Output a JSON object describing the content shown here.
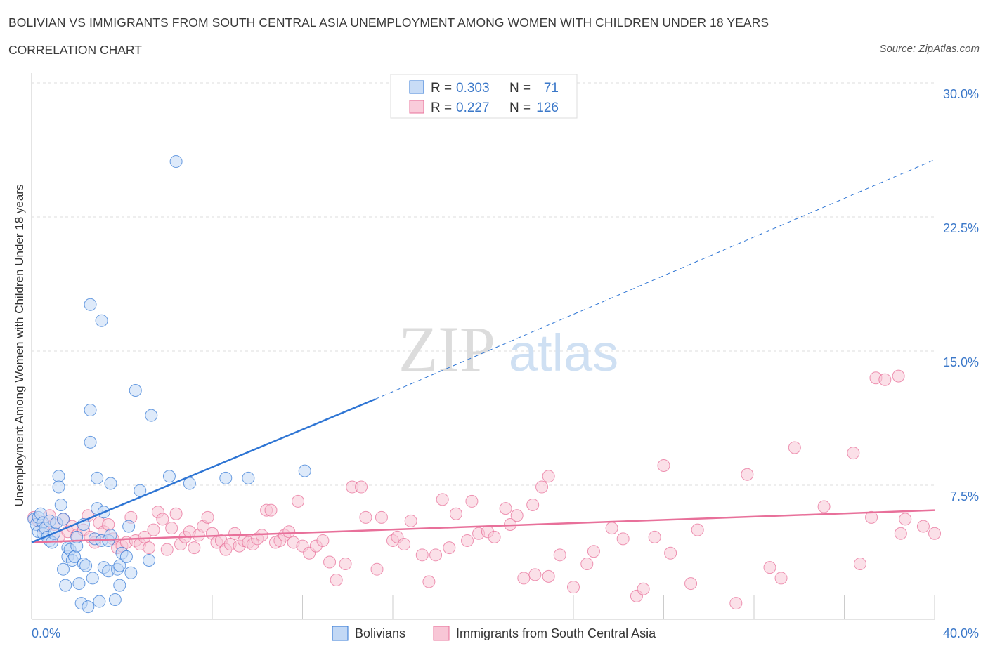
{
  "header": {
    "title": "BOLIVIAN VS IMMIGRANTS FROM SOUTH CENTRAL ASIA UNEMPLOYMENT AMONG WOMEN WITH CHILDREN UNDER 18 YEARS",
    "subtitle": "CORRELATION CHART",
    "source": "Source: ZipAtlas.com"
  },
  "watermark": {
    "part1": "ZIP",
    "part2": "atlas"
  },
  "colors": {
    "blue": "#2e75d4",
    "blue_fill": "#c2d8f5",
    "pink": "#e8709a",
    "pink_fill": "#f8c6d6",
    "tick_label": "#3b78c9"
  },
  "legend_stats": [
    {
      "r_label": "R =",
      "r_value": "0.303",
      "n_label": "N =",
      "n_value": "71"
    },
    {
      "r_label": "R =",
      "r_value": "0.227",
      "n_label": "N =",
      "n_value": "126"
    }
  ],
  "chart_data": {
    "type": "scatter",
    "ylabel": "Unemployment Among Women with Children Under 18 years",
    "xlabel": "",
    "xlim": [
      0,
      40
    ],
    "ylim": [
      0,
      30
    ],
    "x_tick_labels": [
      "0.0%",
      "40.0%"
    ],
    "y_ticks": [
      7.5,
      15.0,
      22.5,
      30.0
    ],
    "y_tick_labels": [
      "7.5%",
      "15.0%",
      "22.5%",
      "30.0%"
    ],
    "grid": "horizontal dashed",
    "legend_position": "bottom",
    "series": [
      {
        "name": "Bolivians",
        "r": 0.303,
        "n": 71,
        "trend_solid": [
          [
            0,
            4.3
          ],
          [
            15.2,
            12.3
          ]
        ],
        "trend_dashed": [
          [
            15.2,
            12.3
          ],
          [
            40,
            25.7
          ]
        ],
        "points": [
          [
            0.1,
            5.6
          ],
          [
            0.2,
            5.3
          ],
          [
            0.3,
            4.9
          ],
          [
            0.3,
            5.7
          ],
          [
            0.4,
            5.9
          ],
          [
            0.5,
            5.4
          ],
          [
            0.5,
            4.8
          ],
          [
            0.6,
            5.1
          ],
          [
            0.7,
            4.6
          ],
          [
            0.8,
            4.4
          ],
          [
            0.8,
            5.5
          ],
          [
            0.9,
            4.3
          ],
          [
            1.0,
            4.8
          ],
          [
            1.1,
            5.4
          ],
          [
            1.2,
            8.0
          ],
          [
            1.2,
            7.4
          ],
          [
            1.3,
            6.4
          ],
          [
            1.4,
            5.6
          ],
          [
            1.4,
            2.8
          ],
          [
            1.5,
            1.9
          ],
          [
            1.6,
            3.5
          ],
          [
            1.6,
            4.0
          ],
          [
            1.7,
            3.9
          ],
          [
            1.8,
            3.3
          ],
          [
            1.9,
            3.5
          ],
          [
            2.0,
            4.1
          ],
          [
            2.0,
            4.6
          ],
          [
            2.1,
            2.0
          ],
          [
            2.2,
            0.9
          ],
          [
            2.3,
            3.1
          ],
          [
            2.4,
            3.0
          ],
          [
            2.5,
            0.7
          ],
          [
            2.3,
            5.3
          ],
          [
            2.6,
            9.9
          ],
          [
            2.6,
            11.7
          ],
          [
            2.6,
            17.6
          ],
          [
            2.7,
            2.3
          ],
          [
            2.8,
            4.5
          ],
          [
            2.9,
            7.9
          ],
          [
            2.9,
            6.2
          ],
          [
            3.0,
            1.0
          ],
          [
            3.1,
            4.4
          ],
          [
            3.2,
            6.0
          ],
          [
            3.1,
            16.7
          ],
          [
            3.2,
            2.9
          ],
          [
            3.4,
            2.7
          ],
          [
            3.4,
            4.4
          ],
          [
            3.5,
            4.7
          ],
          [
            3.5,
            7.6
          ],
          [
            3.7,
            1.1
          ],
          [
            3.8,
            2.8
          ],
          [
            3.9,
            1.9
          ],
          [
            3.9,
            3.0
          ],
          [
            4.0,
            3.7
          ],
          [
            4.2,
            3.5
          ],
          [
            4.3,
            5.2
          ],
          [
            4.4,
            2.6
          ],
          [
            4.6,
            12.8
          ],
          [
            4.8,
            7.2
          ],
          [
            5.2,
            3.3
          ],
          [
            5.3,
            11.4
          ],
          [
            6.1,
            8.0
          ],
          [
            6.4,
            25.6
          ],
          [
            7.0,
            7.6
          ],
          [
            8.6,
            7.9
          ],
          [
            9.6,
            7.9
          ],
          [
            12.1,
            8.3
          ]
        ]
      },
      {
        "name": "Immigrants from South Central Asia",
        "r": 0.227,
        "n": 126,
        "trend_solid": [
          [
            0,
            4.3
          ],
          [
            40,
            6.1
          ]
        ],
        "points": [
          [
            0.1,
            5.7
          ],
          [
            0.3,
            5.5
          ],
          [
            0.5,
            5.1
          ],
          [
            0.8,
            5.8
          ],
          [
            1.0,
            5.3
          ],
          [
            1.2,
            4.6
          ],
          [
            1.4,
            5.6
          ],
          [
            1.6,
            4.9
          ],
          [
            1.8,
            5.2
          ],
          [
            2.0,
            4.7
          ],
          [
            2.3,
            5.0
          ],
          [
            2.5,
            5.8
          ],
          [
            2.6,
            4.6
          ],
          [
            2.8,
            4.3
          ],
          [
            3.0,
            5.4
          ],
          [
            3.2,
            4.9
          ],
          [
            3.4,
            5.3
          ],
          [
            3.6,
            4.5
          ],
          [
            3.8,
            4.0
          ],
          [
            4.0,
            4.1
          ],
          [
            4.2,
            4.3
          ],
          [
            4.4,
            5.7
          ],
          [
            4.6,
            4.4
          ],
          [
            4.8,
            4.2
          ],
          [
            5.0,
            4.6
          ],
          [
            5.2,
            4.0
          ],
          [
            5.4,
            5.0
          ],
          [
            5.6,
            6.0
          ],
          [
            5.8,
            5.6
          ],
          [
            6.0,
            3.9
          ],
          [
            6.2,
            5.1
          ],
          [
            6.4,
            5.9
          ],
          [
            6.6,
            4.2
          ],
          [
            6.8,
            4.6
          ],
          [
            7.0,
            4.9
          ],
          [
            7.2,
            4.0
          ],
          [
            7.4,
            4.7
          ],
          [
            7.6,
            5.2
          ],
          [
            7.8,
            5.7
          ],
          [
            8.0,
            4.8
          ],
          [
            8.2,
            4.3
          ],
          [
            8.4,
            4.4
          ],
          [
            8.6,
            3.9
          ],
          [
            8.8,
            4.2
          ],
          [
            9.0,
            4.8
          ],
          [
            9.2,
            4.1
          ],
          [
            9.4,
            4.4
          ],
          [
            9.6,
            4.3
          ],
          [
            9.8,
            4.2
          ],
          [
            10.0,
            4.5
          ],
          [
            10.2,
            4.7
          ],
          [
            10.4,
            6.1
          ],
          [
            10.6,
            6.1
          ],
          [
            10.8,
            4.3
          ],
          [
            11.0,
            4.4
          ],
          [
            11.2,
            4.7
          ],
          [
            11.4,
            4.9
          ],
          [
            11.6,
            4.3
          ],
          [
            11.8,
            6.6
          ],
          [
            12.0,
            4.1
          ],
          [
            12.3,
            3.7
          ],
          [
            12.6,
            4.1
          ],
          [
            12.9,
            4.4
          ],
          [
            13.2,
            3.2
          ],
          [
            13.5,
            2.2
          ],
          [
            13.9,
            3.1
          ],
          [
            14.2,
            7.4
          ],
          [
            14.6,
            7.4
          ],
          [
            14.8,
            5.7
          ],
          [
            15.3,
            2.8
          ],
          [
            15.5,
            5.7
          ],
          [
            16.0,
            4.4
          ],
          [
            16.2,
            4.6
          ],
          [
            16.5,
            4.2
          ],
          [
            16.8,
            5.5
          ],
          [
            17.3,
            3.6
          ],
          [
            17.6,
            2.1
          ],
          [
            17.9,
            3.6
          ],
          [
            18.2,
            6.7
          ],
          [
            18.5,
            4.0
          ],
          [
            18.8,
            5.9
          ],
          [
            19.3,
            4.4
          ],
          [
            19.5,
            6.6
          ],
          [
            19.8,
            4.8
          ],
          [
            20.2,
            4.9
          ],
          [
            20.5,
            4.6
          ],
          [
            21.0,
            6.2
          ],
          [
            21.2,
            5.3
          ],
          [
            21.5,
            5.8
          ],
          [
            21.8,
            2.3
          ],
          [
            22.2,
            6.4
          ],
          [
            22.3,
            2.5
          ],
          [
            22.6,
            7.4
          ],
          [
            22.9,
            2.4
          ],
          [
            22.9,
            8.0
          ],
          [
            23.4,
            3.6
          ],
          [
            24.0,
            1.8
          ],
          [
            24.6,
            3.1
          ],
          [
            24.9,
            3.8
          ],
          [
            25.7,
            5.1
          ],
          [
            26.2,
            4.5
          ],
          [
            26.8,
            1.3
          ],
          [
            27.1,
            1.7
          ],
          [
            27.6,
            4.6
          ],
          [
            28.0,
            8.6
          ],
          [
            28.3,
            3.7
          ],
          [
            29.2,
            2.0
          ],
          [
            29.5,
            5.0
          ],
          [
            31.2,
            0.9
          ],
          [
            31.7,
            8.1
          ],
          [
            32.7,
            2.9
          ],
          [
            33.2,
            2.3
          ],
          [
            33.8,
            9.6
          ],
          [
            35.1,
            6.3
          ],
          [
            36.4,
            9.3
          ],
          [
            36.7,
            3.1
          ],
          [
            37.2,
            5.7
          ],
          [
            37.4,
            13.5
          ],
          [
            37.8,
            13.4
          ],
          [
            38.4,
            13.6
          ],
          [
            38.5,
            4.8
          ],
          [
            38.7,
            5.6
          ],
          [
            39.5,
            5.2
          ],
          [
            40.0,
            4.8
          ]
        ]
      }
    ]
  }
}
